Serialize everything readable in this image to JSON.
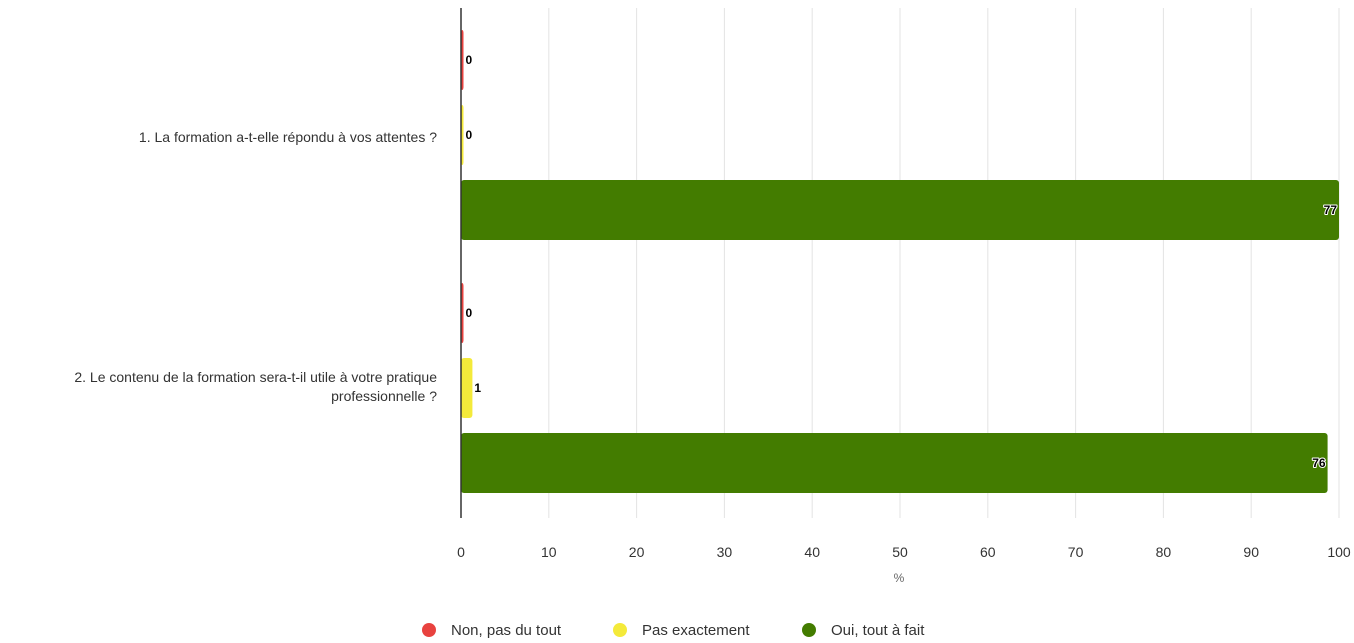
{
  "chart_data": {
    "type": "bar",
    "orientation": "horizontal",
    "categories": [
      "1. La formation a-t-elle répondu à vos attentes ?",
      "2. Le contenu de la formation sera-t-il utile à votre pratique professionnelle ?"
    ],
    "series": [
      {
        "name": "Non, pas du tout",
        "color": "#e8423f",
        "values": [
          0,
          0
        ],
        "labels": [
          "0",
          "0"
        ]
      },
      {
        "name": "Pas exactement",
        "color": "#f4ea3a",
        "values": [
          0,
          1.3
        ],
        "labels": [
          "0",
          "1"
        ]
      },
      {
        "name": "Oui, tout à fait",
        "color": "#437c00",
        "values": [
          100,
          98.7
        ],
        "labels": [
          "77",
          "76"
        ]
      }
    ],
    "xlabel": "%",
    "xlim": [
      0,
      100
    ],
    "xticks": [
      0,
      10,
      20,
      30,
      40,
      50,
      60,
      70,
      80,
      90,
      100
    ],
    "grid": true,
    "legend_position": "bottom"
  }
}
